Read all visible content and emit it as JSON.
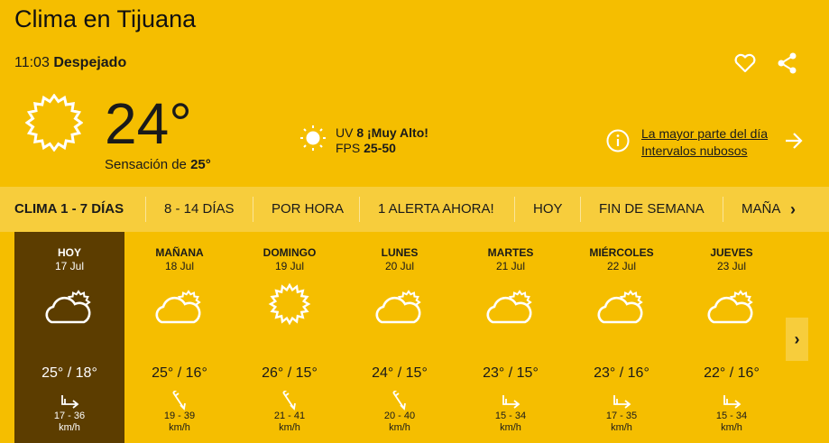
{
  "header": {
    "title": "Clima en Tijuana",
    "time": "11:03",
    "condition": "Despejado",
    "favorite_icon": "heart-icon",
    "share_icon": "share-icon"
  },
  "current": {
    "icon": "sun-icon",
    "temperature": "24°",
    "feels_label": "Sensación de",
    "feels_value": "25°",
    "uv_label": "UV",
    "uv_value": "8 ¡Muy Alto!",
    "fps_label": "FPS",
    "fps_value": "25-50",
    "summary_line1": "La mayor parte del día",
    "summary_line2": "Intervalos nubosos"
  },
  "tabs": [
    {
      "label": "CLIMA 1 - 7 DÍAS",
      "active": true
    },
    {
      "label": "8 - 14 DÍAS"
    },
    {
      "label": "POR HORA"
    },
    {
      "label": "1 ALERTA AHORA!"
    },
    {
      "label": "HOY"
    },
    {
      "label": "FIN DE SEMANA"
    },
    {
      "label": "MAÑANA"
    }
  ],
  "days": [
    {
      "name": "HOY",
      "date": "17 Jul",
      "icon": "partly-cloudy",
      "temp": "25° / 18°",
      "wind_dir": "east",
      "wind": "17 - 36",
      "unit": "km/h"
    },
    {
      "name": "MAÑANA",
      "date": "18 Jul",
      "icon": "partly-cloudy",
      "temp": "25° / 16°",
      "wind_dir": "south-southeast",
      "wind": "19 - 39",
      "unit": "km/h"
    },
    {
      "name": "DOMINGO",
      "date": "19 Jul",
      "icon": "sunny",
      "temp": "26° / 15°",
      "wind_dir": "south-southeast",
      "wind": "21 - 41",
      "unit": "km/h"
    },
    {
      "name": "LUNES",
      "date": "20 Jul",
      "icon": "partly-cloudy",
      "temp": "24° / 15°",
      "wind_dir": "south-southeast",
      "wind": "20 - 40",
      "unit": "km/h"
    },
    {
      "name": "MARTES",
      "date": "21 Jul",
      "icon": "partly-cloudy",
      "temp": "23° / 15°",
      "wind_dir": "east",
      "wind": "15 - 34",
      "unit": "km/h"
    },
    {
      "name": "MIÉRCOLES",
      "date": "22 Jul",
      "icon": "partly-cloudy",
      "temp": "23° / 16°",
      "wind_dir": "east",
      "wind": "17 - 35",
      "unit": "km/h"
    },
    {
      "name": "JUEVES",
      "date": "23 Jul",
      "icon": "partly-cloudy",
      "temp": "22° / 16°",
      "wind_dir": "east",
      "wind": "15 - 34",
      "unit": "km/h"
    }
  ],
  "colors": {
    "background": "#f5be00",
    "tabbar": "#f7cd3c",
    "today": "#5c3d00"
  }
}
